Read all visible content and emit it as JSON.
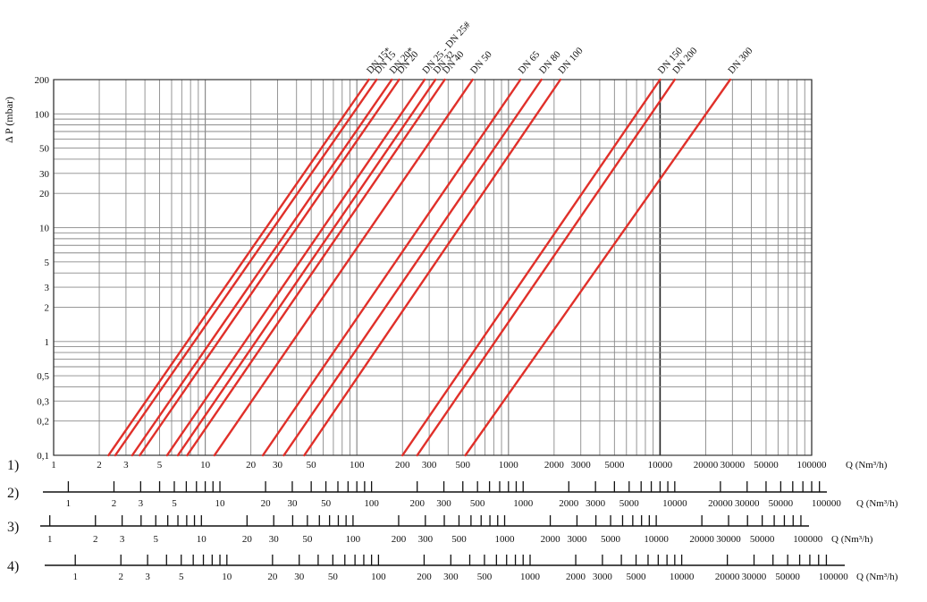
{
  "chart_data": {
    "type": "line",
    "title": "",
    "ylabel": "Δ P (mbar)",
    "xlabel": "Q (Nm³/h)",
    "x_scale": "log",
    "y_scale": "log",
    "xlim": [
      1,
      100000
    ],
    "ylim": [
      0.1,
      200
    ],
    "grid": true,
    "y_ticks": [
      "200",
      "100",
      "50",
      "30",
      "20",
      "10",
      "5",
      "3",
      "2",
      "1",
      "0,5",
      "0,3",
      "0,2",
      "0,1"
    ],
    "x_ticks": [
      "1",
      "2",
      "3",
      "5",
      "10",
      "20",
      "30",
      "50",
      "100",
      "200",
      "300",
      "500",
      "1000",
      "2000",
      "3000",
      "5000",
      "10000",
      "20000",
      "30000",
      "50000",
      "100000"
    ],
    "series": [
      {
        "name": "DN 15*",
        "x": [
          2.3,
          120
        ],
        "y": [
          0.1,
          200
        ]
      },
      {
        "name": "DN 15",
        "x": [
          2.55,
          135
        ],
        "y": [
          0.1,
          200
        ]
      },
      {
        "name": "DN 20*",
        "x": [
          3.3,
          170
        ],
        "y": [
          0.1,
          200
        ]
      },
      {
        "name": "DN 20",
        "x": [
          3.7,
          190
        ],
        "y": [
          0.1,
          200
        ]
      },
      {
        "name": "DN 25 - DN 25#",
        "x": [
          5.6,
          280
        ],
        "y": [
          0.1,
          200
        ]
      },
      {
        "name": "DN 32",
        "x": [
          6.6,
          330
        ],
        "y": [
          0.1,
          200
        ]
      },
      {
        "name": "DN 40",
        "x": [
          7.6,
          380
        ],
        "y": [
          0.1,
          200
        ]
      },
      {
        "name": "DN 50",
        "x": [
          11.5,
          580
        ],
        "y": [
          0.1,
          200
        ]
      },
      {
        "name": "DN 65",
        "x": [
          24,
          1200
        ],
        "y": [
          0.1,
          200
        ]
      },
      {
        "name": "DN 80",
        "x": [
          33,
          1650
        ],
        "y": [
          0.1,
          200
        ]
      },
      {
        "name": "DN 100",
        "x": [
          45,
          2200
        ],
        "y": [
          0.1,
          200
        ]
      },
      {
        "name": "DN 150",
        "x": [
          200,
          10000
        ],
        "y": [
          0.1,
          200
        ]
      },
      {
        "name": "DN 200",
        "x": [
          250,
          12500
        ],
        "y": [
          0.1,
          200
        ]
      },
      {
        "name": "DN 300",
        "x": [
          520,
          29000
        ],
        "y": [
          0.1,
          200
        ]
      }
    ],
    "line_color": "#e0302a",
    "highlight_x": 10000
  },
  "scales": [
    {
      "label": "1)",
      "unit": "Q (Nm³/h)",
      "factor": 1
    },
    {
      "label": "2)",
      "unit": "Q (Nm³/h)",
      "factor": 0.8
    },
    {
      "label": "3)",
      "unit": "Q (Nm³/h)",
      "factor": 1.06
    },
    {
      "label": "4)",
      "unit": "Q (Nm³/h)",
      "factor": 0.72
    }
  ]
}
